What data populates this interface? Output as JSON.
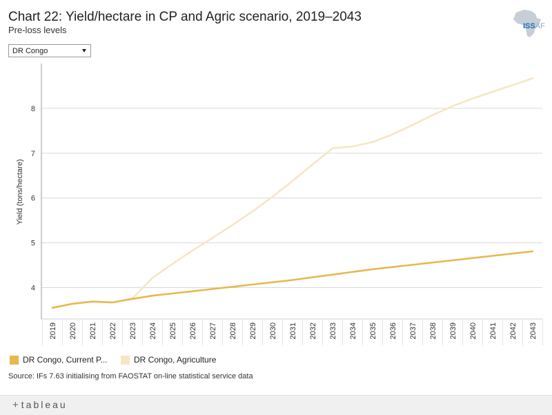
{
  "header": {
    "title": "Chart 22: Yield/hectare in CP and Agric scenario, 2019–2043",
    "subtitle": "Pre-loss levels"
  },
  "logo": {
    "text_main": "ISS",
    "text_sub": "AF"
  },
  "filter": {
    "selected": "DR Congo"
  },
  "legend": {
    "items": [
      {
        "label": "DR Congo, Current P...",
        "color": "#e8b84f"
      },
      {
        "label": "DR Congo, Agriculture",
        "color": "#f5e6c4"
      }
    ]
  },
  "source": "Source: IFs 7.63 initialising from FAOSTAT on-line statistical service data",
  "footer": {
    "brand": "tableau",
    "plus": "+"
  },
  "chart_data": {
    "type": "line",
    "title": "",
    "xlabel": "",
    "ylabel": "Yield (tons/hectare)",
    "ylim": [
      3.3,
      9.0
    ],
    "yticks": [
      4,
      5,
      6,
      7,
      8
    ],
    "x": [
      "2019",
      "2020",
      "2021",
      "2022",
      "2023",
      "2024",
      "2025",
      "2026",
      "2027",
      "2028",
      "2029",
      "2030",
      "2031",
      "2032",
      "2033",
      "2034",
      "2035",
      "2036",
      "2037",
      "2038",
      "2039",
      "2040",
      "2041",
      "2042",
      "2043"
    ],
    "series": [
      {
        "name": "DR Congo, Agriculture",
        "color": "#f5e6c4",
        "values": [
          3.55,
          3.64,
          3.69,
          3.67,
          3.76,
          4.22,
          4.53,
          4.83,
          5.11,
          5.4,
          5.7,
          6.03,
          6.38,
          6.75,
          7.11,
          7.15,
          7.25,
          7.42,
          7.63,
          7.85,
          8.05,
          8.22,
          8.37,
          8.52,
          8.67
        ]
      },
      {
        "name": "DR Congo, Current Path",
        "color": "#e8b84f",
        "values": [
          3.55,
          3.64,
          3.69,
          3.67,
          3.75,
          3.82,
          3.87,
          3.92,
          3.97,
          4.02,
          4.07,
          4.12,
          4.17,
          4.23,
          4.29,
          4.35,
          4.41,
          4.46,
          4.51,
          4.56,
          4.61,
          4.66,
          4.71,
          4.76,
          4.81
        ]
      }
    ]
  }
}
